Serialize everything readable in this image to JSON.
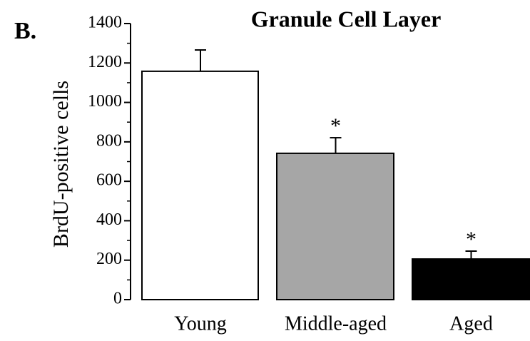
{
  "chart_data": {
    "type": "bar",
    "panel_label": "B.",
    "title": "Granule Cell Layer",
    "y_label": "BrdU-positive cells",
    "categories": [
      "Young",
      "Middle-aged",
      "Aged"
    ],
    "series": [
      {
        "values": [
          1158,
          742,
          206
        ],
        "errors": [
          108,
          79,
          40
        ],
        "colors": [
          "#ffffff",
          "#a6a6a6",
          "#000000"
        ]
      }
    ],
    "annotations": [
      {
        "category": "Middle-aged",
        "text": "*"
      },
      {
        "category": "Aged",
        "text": "*"
      }
    ],
    "ylim": [
      0,
      1400
    ],
    "yticks": [
      0,
      200,
      400,
      600,
      800,
      1000,
      1200,
      1400
    ],
    "yminorticks": [
      100,
      300,
      500,
      700,
      900,
      1100,
      1300
    ]
  }
}
